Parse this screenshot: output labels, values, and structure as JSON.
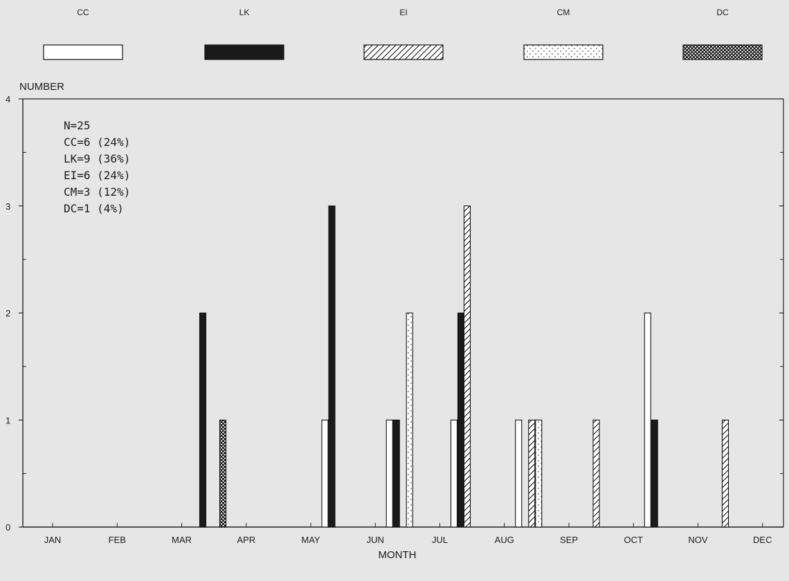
{
  "chart_data": {
    "type": "bar",
    "ylabel": "NUMBER",
    "xlabel": "MONTH",
    "ylim": [
      0,
      4
    ],
    "yticks": [
      "0",
      "1",
      "2",
      "3",
      "4"
    ],
    "categories": [
      "JAN",
      "FEB",
      "MAR",
      "APR",
      "MAY",
      "JUN",
      "JUL",
      "AUG",
      "SEP",
      "OCT",
      "NOV",
      "DEC"
    ],
    "legend_position": "top",
    "series": [
      {
        "name": "CC",
        "pattern": "empty",
        "values": [
          0,
          0,
          0,
          0,
          1,
          1,
          1,
          1,
          0,
          2,
          0,
          0
        ]
      },
      {
        "name": "LK",
        "pattern": "solid",
        "values": [
          0,
          0,
          2,
          0,
          3,
          1,
          2,
          0,
          0,
          1,
          0,
          0
        ]
      },
      {
        "name": "EI",
        "pattern": "diagonal-hatch",
        "values": [
          0,
          0,
          0,
          0,
          0,
          0,
          3,
          1,
          1,
          0,
          1,
          0
        ]
      },
      {
        "name": "CM",
        "pattern": "dotted",
        "values": [
          0,
          0,
          0,
          0,
          0,
          2,
          0,
          1,
          0,
          0,
          0,
          0
        ]
      },
      {
        "name": "DC",
        "pattern": "crosshatch",
        "values": [
          0,
          0,
          1,
          0,
          0,
          0,
          0,
          0,
          0,
          0,
          0,
          0
        ]
      }
    ],
    "annotation_lines": [
      "N=25",
      "CC=6 (24%)",
      "LK=9 (36%)",
      "EI=6 (24%)",
      "CM=3 (12%)",
      "DC=1 (4%)"
    ]
  }
}
